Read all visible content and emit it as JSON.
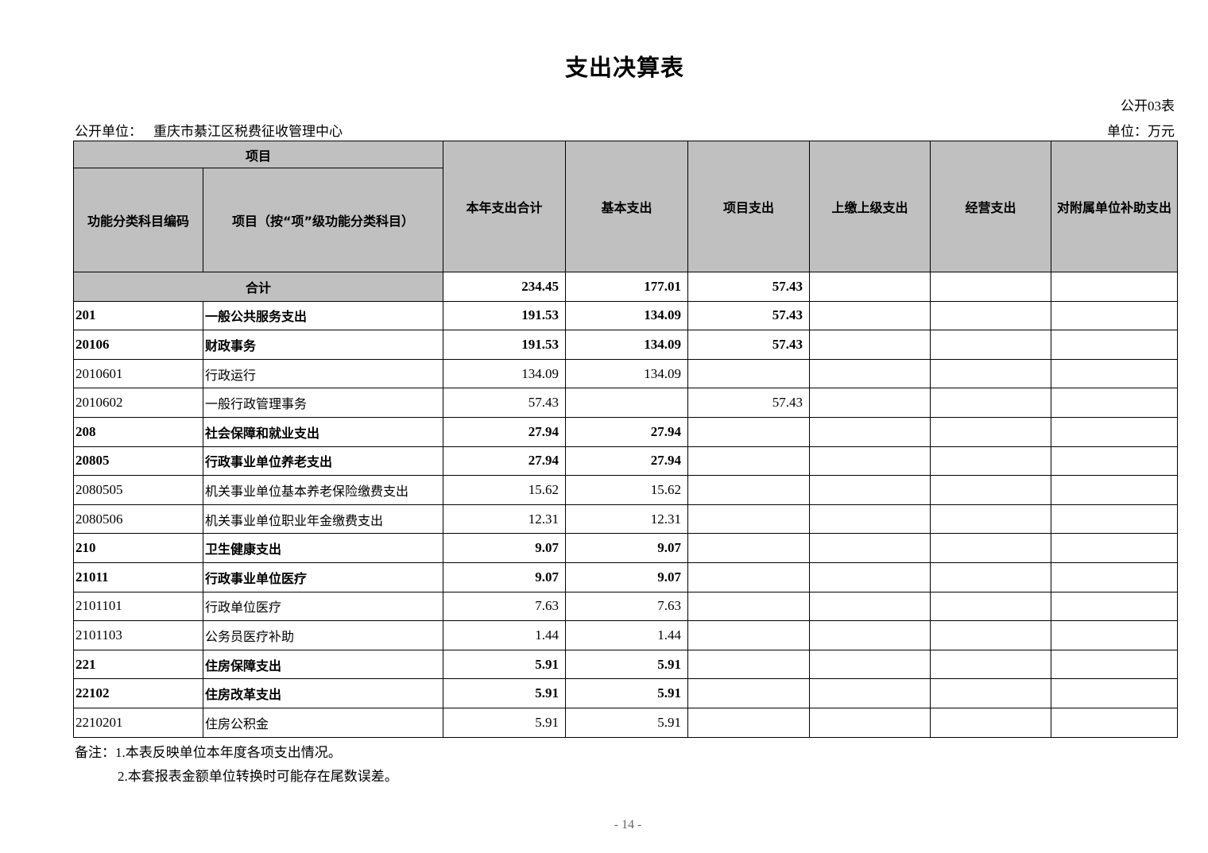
{
  "title": "支出决算表",
  "form_no": "公开03表",
  "unit_label": "公开单位：",
  "unit_name": "重庆市綦江区税费征收管理中心",
  "currency": "单位：万元",
  "headers": {
    "item_group": "项目",
    "code": "功能分类科目编码",
    "name": "项目（按“项”级功能分类科目）",
    "columns": [
      "本年支出合计",
      "基本支出",
      "项目支出",
      "上缴上级支出",
      "经营支出",
      "对附属单位补助支出"
    ]
  },
  "total": {
    "label": "合计",
    "values": [
      "234.45",
      "177.01",
      "57.43",
      "",
      "",
      ""
    ]
  },
  "rows": [
    {
      "code": "201",
      "name": "一般公共服务支出",
      "bold": true,
      "values": [
        "191.53",
        "134.09",
        "57.43",
        "",
        "",
        ""
      ]
    },
    {
      "code": "20106",
      "name": "财政事务",
      "bold": true,
      "values": [
        "191.53",
        "134.09",
        "57.43",
        "",
        "",
        ""
      ]
    },
    {
      "code": "2010601",
      "name": "行政运行",
      "bold": false,
      "values": [
        "134.09",
        "134.09",
        "",
        "",
        "",
        ""
      ]
    },
    {
      "code": "2010602",
      "name": "一般行政管理事务",
      "bold": false,
      "values": [
        "57.43",
        "",
        "57.43",
        "",
        "",
        ""
      ]
    },
    {
      "code": "208",
      "name": "社会保障和就业支出",
      "bold": true,
      "values": [
        "27.94",
        "27.94",
        "",
        "",
        "",
        ""
      ]
    },
    {
      "code": "20805",
      "name": "行政事业单位养老支出",
      "bold": true,
      "values": [
        "27.94",
        "27.94",
        "",
        "",
        "",
        ""
      ]
    },
    {
      "code": "2080505",
      "name": "机关事业单位基本养老保险缴费支出",
      "bold": false,
      "values": [
        "15.62",
        "15.62",
        "",
        "",
        "",
        ""
      ]
    },
    {
      "code": "2080506",
      "name": "机关事业单位职业年金缴费支出",
      "bold": false,
      "values": [
        "12.31",
        "12.31",
        "",
        "",
        "",
        ""
      ]
    },
    {
      "code": "210",
      "name": "卫生健康支出",
      "bold": true,
      "values": [
        "9.07",
        "9.07",
        "",
        "",
        "",
        ""
      ]
    },
    {
      "code": "21011",
      "name": "行政事业单位医疗",
      "bold": true,
      "values": [
        "9.07",
        "9.07",
        "",
        "",
        "",
        ""
      ]
    },
    {
      "code": "2101101",
      "name": "行政单位医疗",
      "bold": false,
      "values": [
        "7.63",
        "7.63",
        "",
        "",
        "",
        ""
      ]
    },
    {
      "code": "2101103",
      "name": "公务员医疗补助",
      "bold": false,
      "values": [
        "1.44",
        "1.44",
        "",
        "",
        "",
        ""
      ]
    },
    {
      "code": "221",
      "name": "住房保障支出",
      "bold": true,
      "values": [
        "5.91",
        "5.91",
        "",
        "",
        "",
        ""
      ]
    },
    {
      "code": "22102",
      "name": "住房改革支出",
      "bold": true,
      "values": [
        "5.91",
        "5.91",
        "",
        "",
        "",
        ""
      ]
    },
    {
      "code": "2210201",
      "name": "住房公积金",
      "bold": false,
      "values": [
        "5.91",
        "5.91",
        "",
        "",
        "",
        ""
      ]
    }
  ],
  "notes": [
    "备注：1.本表反映单位本年度各项支出情况。",
    "2.本套报表金额单位转换时可能存在尾数误差。"
  ],
  "page_number": "- 14 -"
}
